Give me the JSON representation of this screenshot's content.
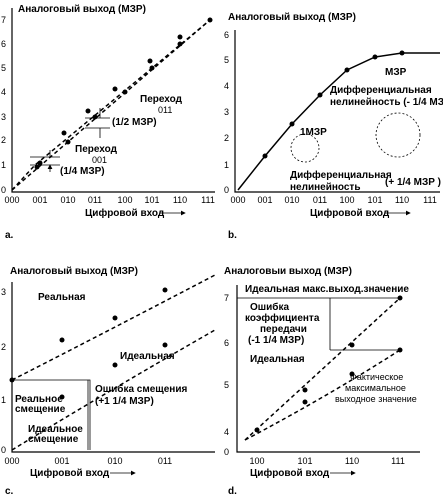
{
  "panels": [
    {
      "label": "a.",
      "title": "Аналоговый выход (МЗР)",
      "x_label": "Цифровой вход",
      "x_ticks": [
        "000",
        "001",
        "010",
        "011",
        "100",
        "101",
        "110",
        "111"
      ],
      "y_ticks": [
        "0",
        "1",
        "2",
        "3",
        "4",
        "5",
        "6",
        "7"
      ],
      "annotations": [
        "Переход",
        "011",
        "(1/2 МЗР)",
        "Переход",
        "001",
        "(1/4 МЗР)"
      ]
    },
    {
      "label": "b.",
      "title": "Аналоговый выход (МЗР)",
      "x_label": "Цифровой вход",
      "x_ticks": [
        "000",
        "001",
        "010",
        "011",
        "100",
        "101",
        "110",
        "111"
      ],
      "y_ticks": [
        "0",
        "1",
        "2",
        "3",
        "4",
        "5",
        "6"
      ],
      "annotations": [
        "МЗР",
        "Дифференциальная",
        "нелинейность (- 1/4 МЗР)",
        "1МЗР",
        "Дифференциальная",
        "нелинейность",
        "(+ 1/4 МЗР )"
      ]
    },
    {
      "label": "c.",
      "title": "Аналоговый выход (МЗР)",
      "x_label": "Цифровой вход",
      "x_ticks": [
        "000",
        "001",
        "010",
        "011"
      ],
      "y_ticks": [
        "0",
        "1",
        "2",
        "3"
      ],
      "annotations": [
        "Реальная",
        "Идеальная",
        "Реальное",
        "смещение",
        "Ошибка смещения",
        "(+1 1/4 МЗР)",
        "Идеальное",
        "смещение"
      ]
    },
    {
      "label": "d.",
      "title": "Аналоговыи выход (МЗР)",
      "x_label": "Цифровой вход",
      "x_ticks": [
        "100",
        "101",
        "110",
        "111"
      ],
      "y_ticks": [
        "0",
        "4",
        "5",
        "6",
        "7"
      ],
      "annotations": [
        "Идеальная макс.выход.значение",
        "Ошибка",
        "коэффициента",
        "передачи",
        "(-1 1/4 МЗР)",
        "Идеальная",
        "Фактическое",
        "максимальное",
        "выходное значение"
      ]
    }
  ]
}
